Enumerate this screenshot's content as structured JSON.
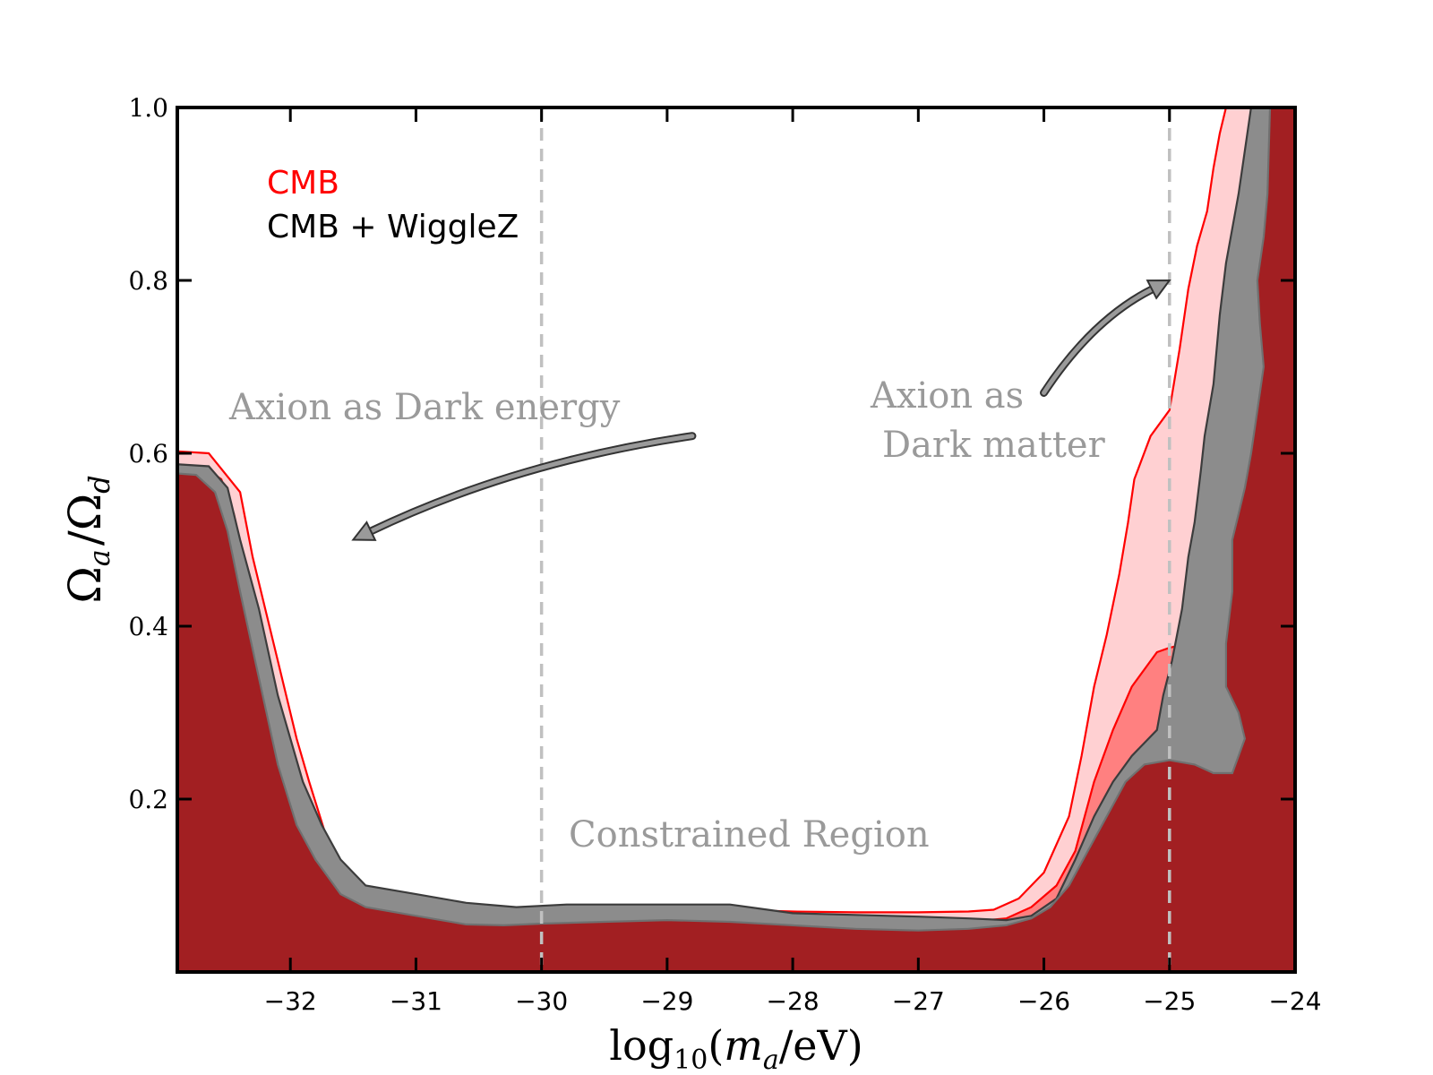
{
  "chart_data": {
    "type": "area",
    "title": "",
    "xlabel": "log10(ma/eV)",
    "ylabel": "Ωa/Ωd",
    "xlim": [
      -32.9,
      -24.0
    ],
    "ylim": [
      0.0,
      1.0
    ],
    "x_ticks": [
      -32,
      -31,
      -30,
      -29,
      -28,
      -27,
      -26,
      -25,
      -24
    ],
    "x_tick_labels": [
      "−32",
      "−31",
      "−30",
      "−29",
      "−28",
      "−27",
      "−26",
      "−25",
      "−24"
    ],
    "y_ticks": [
      0.2,
      0.4,
      0.6,
      0.8,
      1.0
    ],
    "y_tick_labels": [
      "0.2",
      "0.4",
      "0.6",
      "0.8",
      "1.0"
    ],
    "axis_label_parts": {
      "x": {
        "log": "log",
        "sub10": "10",
        "open": "(",
        "m": "m",
        "suba": "a",
        "rest": "/eV)"
      },
      "y": {
        "omega1": "Ω",
        "suba": "a",
        "slash": "/",
        "omega2": "Ω",
        "subd": "d"
      }
    },
    "legend": [
      {
        "label": "CMB",
        "color": "#ff0000"
      },
      {
        "label": "CMB + WiggleZ",
        "color": "#000000"
      }
    ],
    "legend_position": "top-left",
    "vlines": [
      -30,
      -25
    ],
    "annotations": [
      {
        "text": "Axion as Dark energy",
        "arrow_from": [
          -28.8,
          0.62
        ],
        "arrow_to": [
          -31.5,
          0.5
        ]
      },
      {
        "text": "Axion as",
        "arrow_from": [
          -26.0,
          0.67
        ],
        "arrow_to": [
          -25.0,
          0.8
        ]
      },
      {
        "text": "Dark matter"
      },
      {
        "text": "Constrained Region"
      }
    ],
    "series": [
      {
        "name": "CMB (outer 95% contour)",
        "color": "#ff0000",
        "fill": "#ffd0d2",
        "boundary": [
          [
            -33.2,
            0.605
          ],
          [
            -32.65,
            0.6
          ],
          [
            -32.4,
            0.555
          ],
          [
            -32.3,
            0.48
          ],
          [
            -32.1,
            0.36
          ],
          [
            -31.95,
            0.27
          ],
          [
            -31.85,
            0.22
          ],
          [
            -31.7,
            0.15
          ],
          [
            -31.5,
            0.105
          ],
          [
            -31.3,
            0.085
          ],
          [
            -31.0,
            0.078
          ],
          [
            -30.6,
            0.072
          ],
          [
            -30.3,
            0.068
          ],
          [
            -30.0,
            0.07
          ],
          [
            -29.5,
            0.072
          ],
          [
            -29.0,
            0.072
          ],
          [
            -28.5,
            0.072
          ],
          [
            -28.0,
            0.07
          ],
          [
            -27.5,
            0.069
          ],
          [
            -27.0,
            0.069
          ],
          [
            -26.6,
            0.07
          ],
          [
            -26.4,
            0.072
          ],
          [
            -26.2,
            0.085
          ],
          [
            -26.0,
            0.115
          ],
          [
            -25.8,
            0.18
          ],
          [
            -25.7,
            0.25
          ],
          [
            -25.6,
            0.33
          ],
          [
            -25.5,
            0.39
          ],
          [
            -25.4,
            0.46
          ],
          [
            -25.33,
            0.52
          ],
          [
            -25.28,
            0.57
          ],
          [
            -25.15,
            0.62
          ],
          [
            -25.0,
            0.65
          ],
          [
            -24.92,
            0.72
          ],
          [
            -24.85,
            0.79
          ],
          [
            -24.78,
            0.84
          ],
          [
            -24.7,
            0.88
          ],
          [
            -24.65,
            0.93
          ],
          [
            -24.6,
            0.97
          ],
          [
            -24.55,
            1.0
          ]
        ]
      },
      {
        "name": "CMB (inner 68% contour)",
        "color": "#ff0000",
        "fill": "#ff8080",
        "boundary": [
          [
            -33.2,
            0.59
          ],
          [
            -32.7,
            0.585
          ],
          [
            -32.55,
            0.57
          ],
          [
            -32.45,
            0.53
          ],
          [
            -32.3,
            0.43
          ],
          [
            -32.15,
            0.31
          ],
          [
            -32.0,
            0.23
          ],
          [
            -31.85,
            0.16
          ],
          [
            -31.7,
            0.11
          ],
          [
            -31.5,
            0.085
          ],
          [
            -31.2,
            0.075
          ],
          [
            -30.8,
            0.065
          ],
          [
            -30.4,
            0.06
          ],
          [
            -30.0,
            0.062
          ],
          [
            -29.5,
            0.066
          ],
          [
            -29.0,
            0.066
          ],
          [
            -28.5,
            0.066
          ],
          [
            -28.0,
            0.064
          ],
          [
            -27.5,
            0.06
          ],
          [
            -27.0,
            0.058
          ],
          [
            -26.6,
            0.058
          ],
          [
            -26.3,
            0.062
          ],
          [
            -26.1,
            0.075
          ],
          [
            -25.9,
            0.1
          ],
          [
            -25.75,
            0.14
          ],
          [
            -25.6,
            0.22
          ],
          [
            -25.45,
            0.28
          ],
          [
            -25.3,
            0.33
          ],
          [
            -25.1,
            0.37
          ],
          [
            -25.0,
            0.375
          ],
          [
            -24.85,
            0.38
          ],
          [
            -24.7,
            0.4
          ],
          [
            -24.55,
            0.44
          ],
          [
            -24.4,
            0.52
          ],
          [
            -24.3,
            0.58
          ],
          [
            -24.25,
            0.62
          ],
          [
            -24.2,
            0.66
          ],
          [
            -24.15,
            0.68
          ],
          [
            -24.25,
            0.7
          ],
          [
            -24.3,
            0.72
          ],
          [
            -24.32,
            0.76
          ],
          [
            -24.35,
            0.8
          ],
          [
            -24.32,
            0.85
          ],
          [
            -24.28,
            0.88
          ],
          [
            -24.25,
            0.91
          ],
          [
            -24.22,
            0.95
          ],
          [
            -24.2,
            1.0
          ]
        ]
      },
      {
        "name": "CMB + WiggleZ (outer 95% contour)",
        "color": "#3c3c3c",
        "fill": "#8c8c8c",
        "boundary": [
          [
            -33.2,
            0.59
          ],
          [
            -32.65,
            0.585
          ],
          [
            -32.5,
            0.56
          ],
          [
            -32.4,
            0.5
          ],
          [
            -32.25,
            0.42
          ],
          [
            -32.1,
            0.32
          ],
          [
            -31.9,
            0.22
          ],
          [
            -31.75,
            0.17
          ],
          [
            -31.6,
            0.13
          ],
          [
            -31.4,
            0.1
          ],
          [
            -31.0,
            0.09
          ],
          [
            -30.6,
            0.08
          ],
          [
            -30.2,
            0.075
          ],
          [
            -29.8,
            0.078
          ],
          [
            -29.5,
            0.078
          ],
          [
            -29.0,
            0.078
          ],
          [
            -28.5,
            0.078
          ],
          [
            -28.2,
            0.072
          ],
          [
            -28.0,
            0.068
          ],
          [
            -27.5,
            0.066
          ],
          [
            -27.0,
            0.064
          ],
          [
            -26.6,
            0.062
          ],
          [
            -26.3,
            0.06
          ],
          [
            -26.1,
            0.065
          ],
          [
            -25.9,
            0.085
          ],
          [
            -25.75,
            0.13
          ],
          [
            -25.6,
            0.18
          ],
          [
            -25.45,
            0.22
          ],
          [
            -25.3,
            0.25
          ],
          [
            -25.1,
            0.28
          ],
          [
            -25.05,
            0.32
          ],
          [
            -24.98,
            0.36
          ],
          [
            -24.9,
            0.42
          ],
          [
            -24.85,
            0.48
          ],
          [
            -24.8,
            0.52
          ],
          [
            -24.75,
            0.58
          ],
          [
            -24.72,
            0.62
          ],
          [
            -24.65,
            0.68
          ],
          [
            -24.6,
            0.76
          ],
          [
            -24.55,
            0.82
          ],
          [
            -24.5,
            0.86
          ],
          [
            -24.45,
            0.9
          ],
          [
            -24.4,
            0.95
          ],
          [
            -24.35,
            1.0
          ]
        ]
      },
      {
        "name": "CMB + WiggleZ (inner 68% contour)",
        "color": "#707070",
        "fill": "#a21f22",
        "boundary": [
          [
            -33.2,
            0.58
          ],
          [
            -32.75,
            0.575
          ],
          [
            -32.6,
            0.555
          ],
          [
            -32.5,
            0.51
          ],
          [
            -32.4,
            0.44
          ],
          [
            -32.25,
            0.34
          ],
          [
            -32.1,
            0.24
          ],
          [
            -31.95,
            0.17
          ],
          [
            -31.8,
            0.13
          ],
          [
            -31.6,
            0.09
          ],
          [
            -31.4,
            0.075
          ],
          [
            -31.0,
            0.065
          ],
          [
            -30.6,
            0.055
          ],
          [
            -30.3,
            0.054
          ],
          [
            -30.0,
            0.056
          ],
          [
            -29.5,
            0.058
          ],
          [
            -29.0,
            0.06
          ],
          [
            -28.5,
            0.058
          ],
          [
            -28.0,
            0.054
          ],
          [
            -27.5,
            0.05
          ],
          [
            -27.0,
            0.048
          ],
          [
            -26.6,
            0.05
          ],
          [
            -26.3,
            0.054
          ],
          [
            -26.1,
            0.062
          ],
          [
            -25.95,
            0.075
          ],
          [
            -25.8,
            0.1
          ],
          [
            -25.65,
            0.14
          ],
          [
            -25.5,
            0.18
          ],
          [
            -25.35,
            0.22
          ],
          [
            -25.2,
            0.24
          ],
          [
            -25.0,
            0.245
          ],
          [
            -24.8,
            0.24
          ],
          [
            -24.65,
            0.23
          ],
          [
            -24.5,
            0.23
          ],
          [
            -24.4,
            0.27
          ],
          [
            -24.45,
            0.3
          ],
          [
            -24.55,
            0.33
          ],
          [
            -24.55,
            0.38
          ],
          [
            -24.5,
            0.44
          ],
          [
            -24.5,
            0.5
          ],
          [
            -24.4,
            0.56
          ],
          [
            -24.35,
            0.6
          ],
          [
            -24.3,
            0.65
          ],
          [
            -24.25,
            0.7
          ],
          [
            -24.28,
            0.75
          ],
          [
            -24.3,
            0.8
          ],
          [
            -24.25,
            0.85
          ],
          [
            -24.22,
            0.9
          ],
          [
            -24.2,
            1.0
          ]
        ]
      }
    ]
  }
}
